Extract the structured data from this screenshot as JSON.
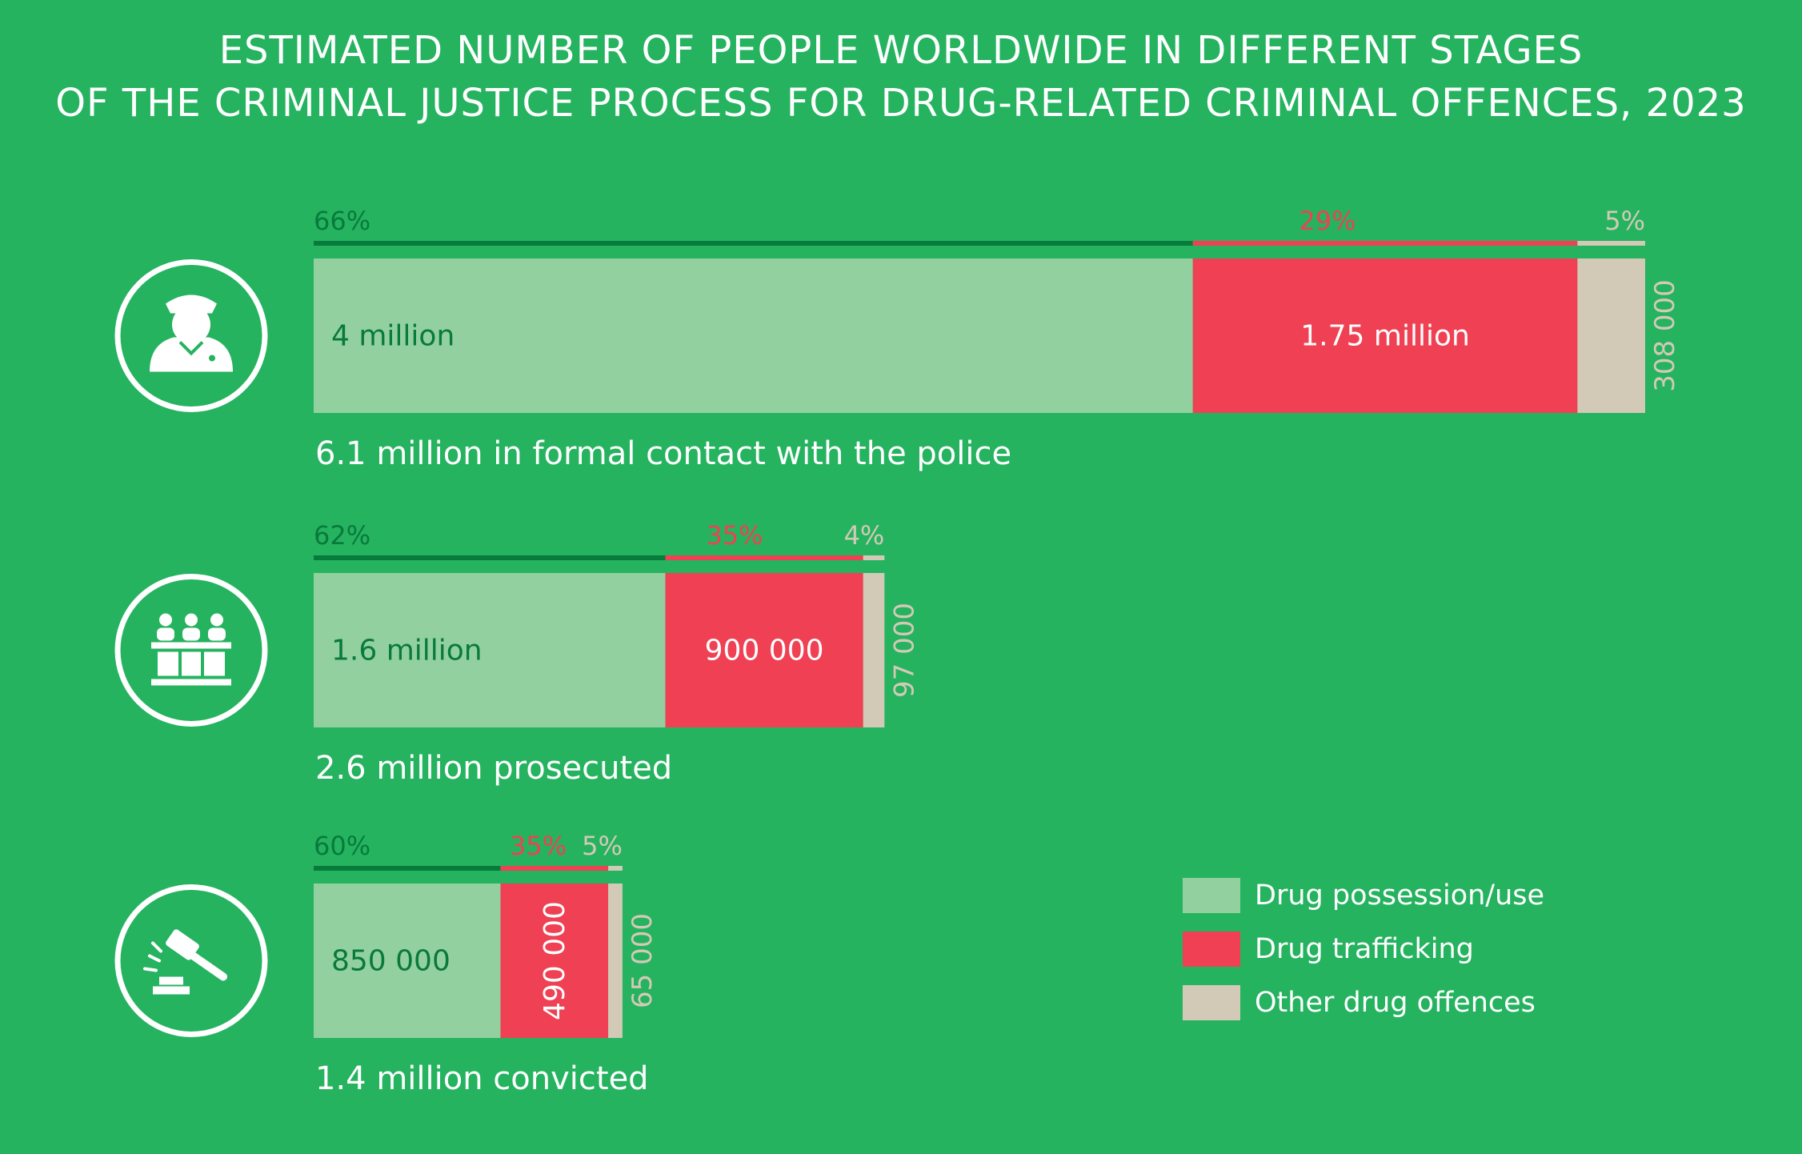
{
  "title_lines": [
    "ESTIMATED NUMBER OF PEOPLE WORLDWIDE IN DIFFERENT STAGES",
    "OF THE CRIMINAL JUSTICE PROCESS FOR DRUG-RELATED CRIMINAL OFFENCES, 2023"
  ],
  "colors": {
    "background": "#25b35f",
    "possession": "#93d09f",
    "trafficking": "#ef4153",
    "other": "#d3c9b7",
    "dark_green": "#087a3c",
    "white": "#ffffff"
  },
  "icons": [
    "police-officer-icon",
    "courtroom-icon",
    "gavel-icon"
  ],
  "legend": [
    {
      "label": "Drug possession/use",
      "color": "#93d09f"
    },
    {
      "label": "Drug trafficking",
      "color": "#ef4153"
    },
    {
      "label": "Other drug offences",
      "color": "#d3c9b7"
    }
  ],
  "chart_data": {
    "type": "bar",
    "orientation": "horizontal",
    "stacked": true,
    "title": "ESTIMATED NUMBER OF PEOPLE WORLDWIDE IN DIFFERENT STAGES OF THE CRIMINAL JUSTICE PROCESS FOR DRUG-RELATED CRIMINAL OFFENCES, 2023",
    "series_names": [
      "Drug possession/use",
      "Drug trafficking",
      "Other drug offences"
    ],
    "stages": [
      {
        "caption": "6.1 million in formal contact with the police",
        "icon": "police-officer-icon",
        "segments": [
          {
            "series": "Drug possession/use",
            "value": 4000000,
            "label": "4 million",
            "percent_label": "66%"
          },
          {
            "series": "Drug trafficking",
            "value": 1750000,
            "label": "1.75 million",
            "percent_label": "29%"
          },
          {
            "series": "Other drug offences",
            "value": 308000,
            "label": "308 000",
            "percent_label": "5%"
          }
        ]
      },
      {
        "caption": "2.6 million prosecuted",
        "icon": "courtroom-icon",
        "segments": [
          {
            "series": "Drug possession/use",
            "value": 1600000,
            "label": "1.6 million",
            "percent_label": "62%"
          },
          {
            "series": "Drug trafficking",
            "value": 900000,
            "label": "900 000",
            "percent_label": "35%"
          },
          {
            "series": "Other drug offences",
            "value": 97000,
            "label": "97 000",
            "percent_label": "4%"
          }
        ]
      },
      {
        "caption": "1.4 million convicted",
        "icon": "gavel-icon",
        "segments": [
          {
            "series": "Drug possession/use",
            "value": 850000,
            "label": "850 000",
            "percent_label": "60%"
          },
          {
            "series": "Drug trafficking",
            "value": 490000,
            "label": "490 000",
            "percent_label": "35%"
          },
          {
            "series": "Other drug offences",
            "value": 65000,
            "label": "65 000",
            "percent_label": "5%"
          }
        ]
      }
    ]
  }
}
